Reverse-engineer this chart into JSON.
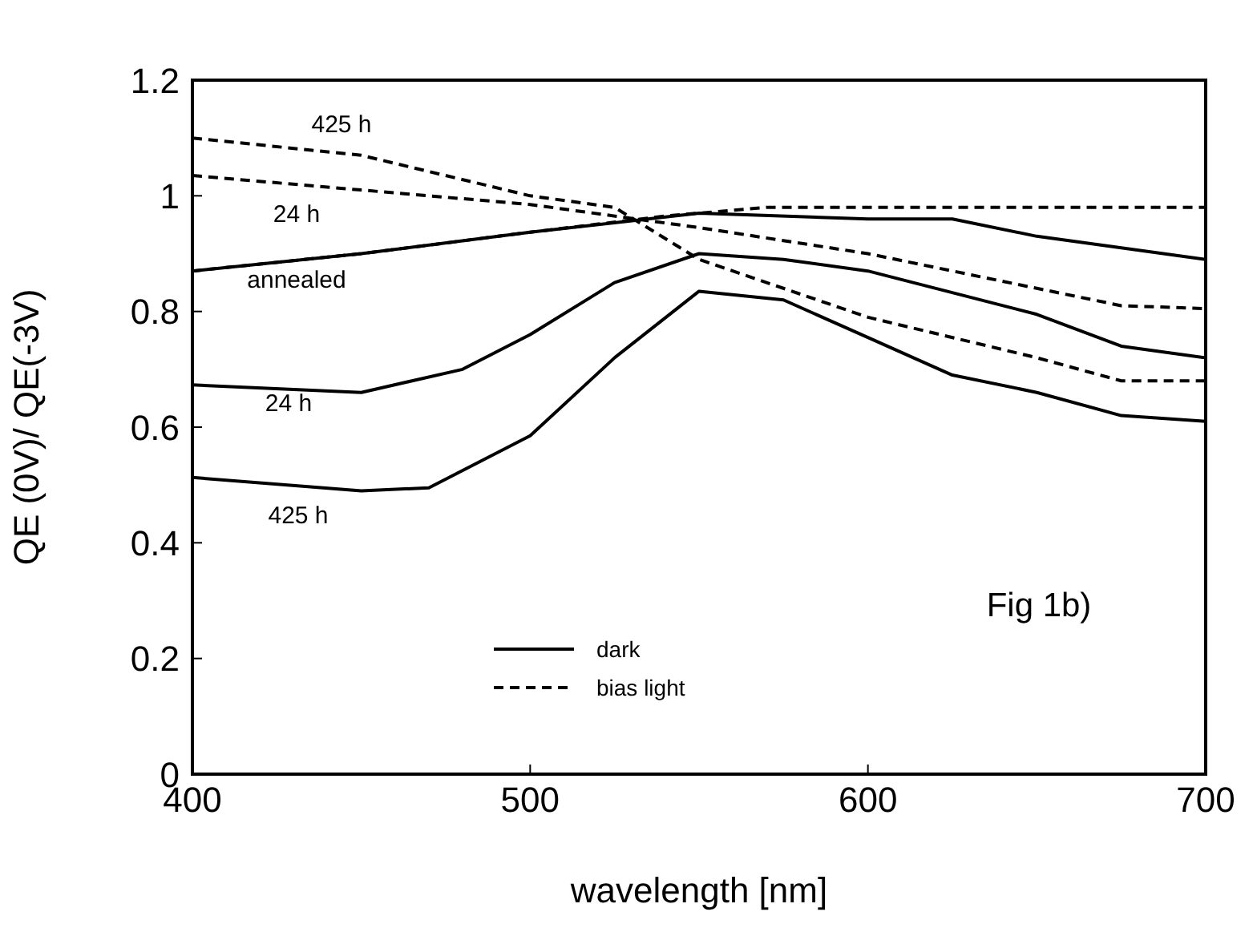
{
  "chart_data": {
    "type": "line",
    "xlabel": "wavelength [nm]",
    "ylabel": "QE (0V)/ QE(-3V)",
    "xlim": [
      400,
      700
    ],
    "xticks": [
      400,
      500,
      600,
      700
    ],
    "ylim": [
      0,
      1.2
    ],
    "yticks": [
      0,
      0.2,
      0.4,
      0.6,
      0.8,
      1,
      1.2
    ],
    "legend": "bottom",
    "marker": "none",
    "series": [
      {
        "name": "dark",
        "color": "#000000",
        "line_style": "solid",
        "x": [
          400,
          450,
          500,
          550,
          600,
          625,
          650,
          675,
          700
        ],
        "values": [
          0.87,
          0.9,
          0.937,
          0.97,
          0.96,
          0.96,
          0.93,
          0.91,
          0.89
        ]
      },
      {
        "color": "#000000",
        "line_style": "solid",
        "x": [
          400,
          450,
          480,
          500,
          525,
          550,
          575,
          600,
          650,
          675,
          700
        ],
        "values": [
          0.673,
          0.66,
          0.7,
          0.76,
          0.85,
          0.9,
          0.89,
          0.87,
          0.795,
          0.74,
          0.72
        ]
      },
      {
        "color": "#000000",
        "line_style": "solid",
        "x": [
          400,
          450,
          470,
          500,
          525,
          550,
          575,
          600,
          625,
          650,
          675,
          700
        ],
        "values": [
          0.513,
          0.49,
          0.495,
          0.585,
          0.72,
          0.835,
          0.82,
          0.755,
          0.69,
          0.66,
          0.62,
          0.61
        ]
      },
      {
        "name": "bias light",
        "color": "#000000",
        "line_style": "dashed",
        "x": [
          400,
          450,
          500,
          540,
          570,
          600,
          650,
          700
        ],
        "values": [
          0.87,
          0.9,
          0.937,
          0.965,
          0.98,
          0.98,
          0.98,
          0.98
        ]
      },
      {
        "color": "#000000",
        "line_style": "dashed",
        "x": [
          400,
          450,
          500,
          550,
          600,
          650,
          675,
          700
        ],
        "values": [
          1.035,
          1.01,
          0.985,
          0.945,
          0.9,
          0.84,
          0.81,
          0.805
        ]
      },
      {
        "color": "#000000",
        "line_style": "dashed",
        "x": [
          400,
          450,
          500,
          525,
          550,
          600,
          650,
          675,
          700
        ],
        "values": [
          1.1,
          1.07,
          1.0,
          0.98,
          0.89,
          0.79,
          0.72,
          0.68,
          0.68
        ]
      }
    ],
    "annotations": [
      "425 h",
      "24 h",
      "annealed",
      "24 h",
      "425 h",
      "Fig 1b)"
    ]
  }
}
